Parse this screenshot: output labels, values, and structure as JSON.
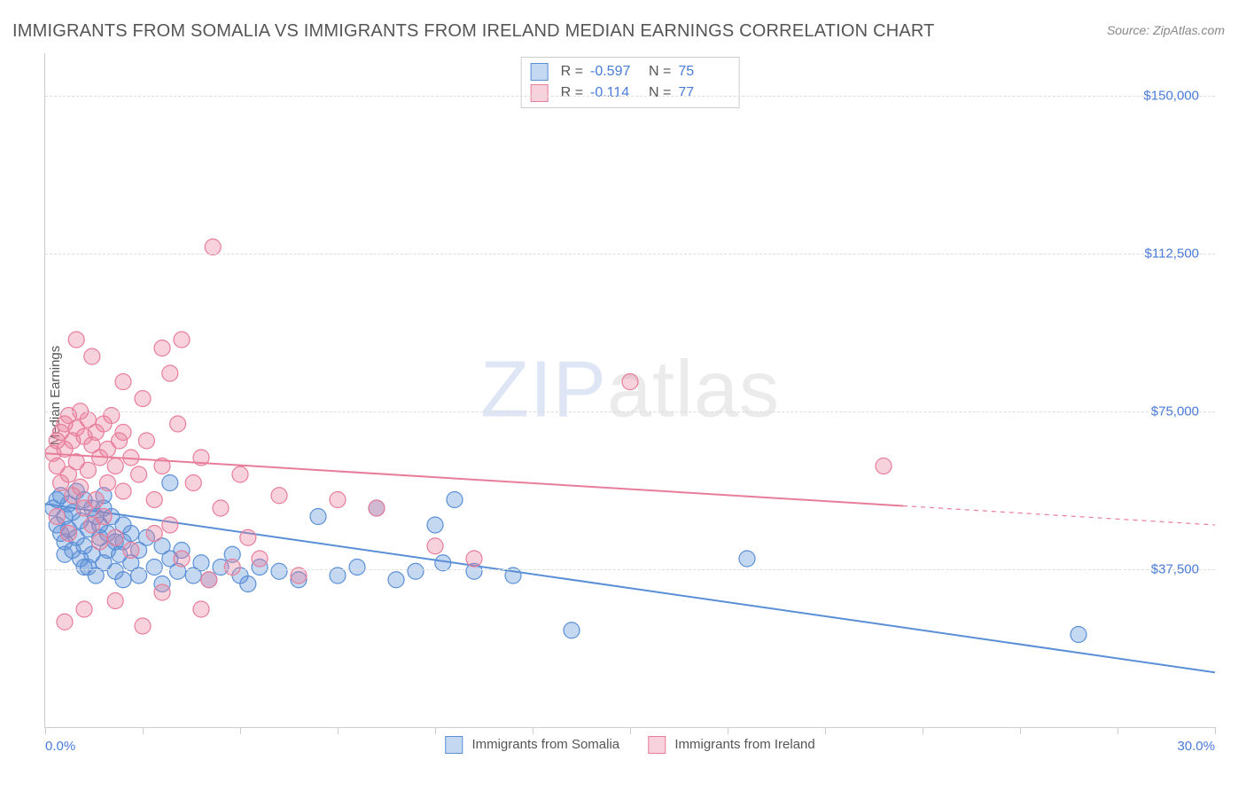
{
  "title": "IMMIGRANTS FROM SOMALIA VS IMMIGRANTS FROM IRELAND MEDIAN EARNINGS CORRELATION CHART",
  "source": "Source: ZipAtlas.com",
  "y_axis_label": "Median Earnings",
  "watermark": {
    "part1": "ZIP",
    "part2": "atlas"
  },
  "chart": {
    "type": "scatter",
    "xlim": [
      0,
      30
    ],
    "ylim": [
      0,
      160000
    ],
    "x_unit": "%",
    "x_min_label": "0.0%",
    "x_max_label": "30.0%",
    "y_ticks": [
      {
        "value": 37500,
        "label": "$37,500"
      },
      {
        "value": 75000,
        "label": "$75,000"
      },
      {
        "value": 112500,
        "label": "$112,500"
      },
      {
        "value": 150000,
        "label": "$150,000"
      }
    ],
    "x_tick_positions": [
      0,
      2.5,
      5,
      7.5,
      10,
      12.5,
      15,
      17.5,
      20,
      22.5,
      25,
      27.5,
      30
    ],
    "grid_color": "#dddddd",
    "axis_color": "#cccccc",
    "background_color": "#ffffff",
    "label_color": "#555555",
    "value_color": "#4a7bd8",
    "marker_radius": 9,
    "marker_fill_opacity": 0.35,
    "marker_stroke_width": 1.2,
    "line_width": 2,
    "series": [
      {
        "name": "Immigrants from Somalia",
        "color": "#5a8fd6",
        "fill": "rgba(90,143,214,0.35)",
        "R": "-0.597",
        "N": "75",
        "regression": {
          "x1": 0,
          "y1": 53000,
          "x2": 30,
          "y2": 13000,
          "solid_until_x": 30
        },
        "points": [
          [
            0.2,
            52000
          ],
          [
            0.3,
            48000
          ],
          [
            0.4,
            55000
          ],
          [
            0.4,
            46000
          ],
          [
            0.5,
            50000
          ],
          [
            0.5,
            44000
          ],
          [
            0.6,
            53000
          ],
          [
            0.6,
            47000
          ],
          [
            0.7,
            51000
          ],
          [
            0.7,
            42000
          ],
          [
            0.8,
            56000
          ],
          [
            0.8,
            45000
          ],
          [
            0.9,
            49000
          ],
          [
            0.9,
            40000
          ],
          [
            1.0,
            54000
          ],
          [
            1.0,
            43000
          ],
          [
            1.1,
            47000
          ],
          [
            1.1,
            38000
          ],
          [
            1.2,
            52000
          ],
          [
            1.2,
            41000
          ],
          [
            1.3,
            50000
          ],
          [
            1.3,
            36000
          ],
          [
            1.4,
            48000
          ],
          [
            1.4,
            45000
          ],
          [
            1.5,
            55000
          ],
          [
            1.5,
            39000
          ],
          [
            1.6,
            46000
          ],
          [
            1.6,
            42000
          ],
          [
            1.7,
            50000
          ],
          [
            1.8,
            37000
          ],
          [
            1.8,
            44000
          ],
          [
            1.9,
            41000
          ],
          [
            2.0,
            48000
          ],
          [
            2.0,
            35000
          ],
          [
            2.2,
            46000
          ],
          [
            2.2,
            39000
          ],
          [
            2.4,
            42000
          ],
          [
            2.4,
            36000
          ],
          [
            2.6,
            45000
          ],
          [
            2.8,
            38000
          ],
          [
            3.0,
            43000
          ],
          [
            3.0,
            34000
          ],
          [
            3.2,
            58000
          ],
          [
            3.2,
            40000
          ],
          [
            3.4,
            37000
          ],
          [
            3.5,
            42000
          ],
          [
            3.8,
            36000
          ],
          [
            4.0,
            39000
          ],
          [
            4.2,
            35000
          ],
          [
            4.5,
            38000
          ],
          [
            4.8,
            41000
          ],
          [
            5.0,
            36000
          ],
          [
            5.2,
            34000
          ],
          [
            5.5,
            38000
          ],
          [
            6.0,
            37000
          ],
          [
            6.5,
            35000
          ],
          [
            7.0,
            50000
          ],
          [
            7.5,
            36000
          ],
          [
            8.0,
            38000
          ],
          [
            8.5,
            52000
          ],
          [
            9.0,
            35000
          ],
          [
            9.5,
            37000
          ],
          [
            10.0,
            48000
          ],
          [
            10.2,
            39000
          ],
          [
            10.5,
            54000
          ],
          [
            11.0,
            37000
          ],
          [
            12.0,
            36000
          ],
          [
            13.5,
            23000
          ],
          [
            18.0,
            40000
          ],
          [
            26.5,
            22000
          ],
          [
            0.3,
            54000
          ],
          [
            0.5,
            41000
          ],
          [
            1.0,
            38000
          ],
          [
            1.5,
            52000
          ],
          [
            2.0,
            44000
          ]
        ]
      },
      {
        "name": "Immigrants from Ireland",
        "color": "#e87d9a",
        "fill": "rgba(232,125,154,0.35)",
        "R": "-0.114",
        "N": "77",
        "regression": {
          "x1": 0,
          "y1": 65000,
          "x2": 30,
          "y2": 48000,
          "solid_until_x": 22
        },
        "points": [
          [
            0.2,
            65000
          ],
          [
            0.3,
            68000
          ],
          [
            0.3,
            62000
          ],
          [
            0.4,
            70000
          ],
          [
            0.4,
            58000
          ],
          [
            0.5,
            72000
          ],
          [
            0.5,
            66000
          ],
          [
            0.6,
            74000
          ],
          [
            0.6,
            60000
          ],
          [
            0.7,
            68000
          ],
          [
            0.7,
            55000
          ],
          [
            0.8,
            71000
          ],
          [
            0.8,
            63000
          ],
          [
            0.9,
            75000
          ],
          [
            0.9,
            57000
          ],
          [
            1.0,
            69000
          ],
          [
            1.0,
            52000
          ],
          [
            1.1,
            73000
          ],
          [
            1.1,
            61000
          ],
          [
            1.2,
            67000
          ],
          [
            1.2,
            48000
          ],
          [
            1.3,
            70000
          ],
          [
            1.3,
            54000
          ],
          [
            1.4,
            64000
          ],
          [
            1.5,
            72000
          ],
          [
            1.5,
            50000
          ],
          [
            1.6,
            66000
          ],
          [
            1.6,
            58000
          ],
          [
            1.7,
            74000
          ],
          [
            1.8,
            62000
          ],
          [
            1.8,
            45000
          ],
          [
            1.9,
            68000
          ],
          [
            2.0,
            56000
          ],
          [
            2.0,
            70000
          ],
          [
            2.2,
            64000
          ],
          [
            2.2,
            42000
          ],
          [
            2.4,
            60000
          ],
          [
            2.6,
            68000
          ],
          [
            2.8,
            54000
          ],
          [
            3.0,
            90000
          ],
          [
            3.0,
            62000
          ],
          [
            3.2,
            48000
          ],
          [
            3.4,
            72000
          ],
          [
            3.5,
            40000
          ],
          [
            3.5,
            92000
          ],
          [
            3.8,
            58000
          ],
          [
            4.0,
            64000
          ],
          [
            4.2,
            35000
          ],
          [
            4.3,
            114000
          ],
          [
            4.5,
            52000
          ],
          [
            4.8,
            38000
          ],
          [
            5.0,
            60000
          ],
          [
            5.2,
            45000
          ],
          [
            5.5,
            40000
          ],
          [
            6.0,
            55000
          ],
          [
            6.5,
            36000
          ],
          [
            7.5,
            54000
          ],
          [
            8.5,
            52000
          ],
          [
            10.0,
            43000
          ],
          [
            11.0,
            40000
          ],
          [
            15.0,
            82000
          ],
          [
            21.5,
            62000
          ],
          [
            0.8,
            92000
          ],
          [
            1.2,
            88000
          ],
          [
            2.0,
            82000
          ],
          [
            2.5,
            78000
          ],
          [
            3.2,
            84000
          ],
          [
            0.5,
            25000
          ],
          [
            1.0,
            28000
          ],
          [
            1.8,
            30000
          ],
          [
            2.5,
            24000
          ],
          [
            3.0,
            32000
          ],
          [
            0.3,
            50000
          ],
          [
            0.6,
            46000
          ],
          [
            1.4,
            44000
          ],
          [
            2.8,
            46000
          ],
          [
            4.0,
            28000
          ]
        ]
      }
    ]
  },
  "legend_bottom": [
    {
      "label": "Immigrants from Somalia",
      "fill": "rgba(90,143,214,0.35)",
      "border": "#5a8fd6"
    },
    {
      "label": "Immigrants from Ireland",
      "fill": "rgba(232,125,154,0.35)",
      "border": "#e87d9a"
    }
  ]
}
